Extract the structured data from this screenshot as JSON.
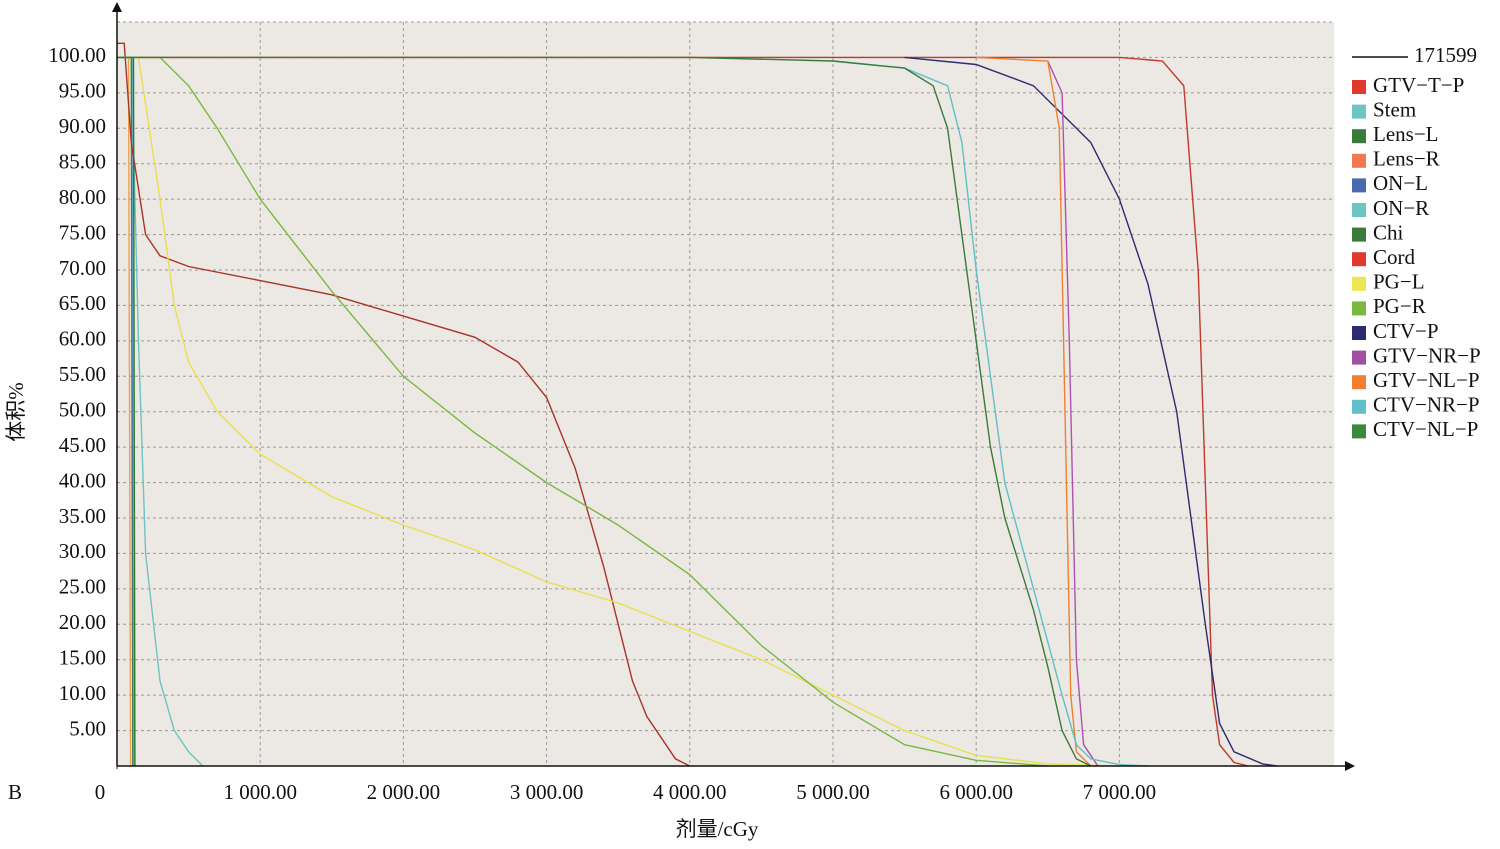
{
  "chart_data": {
    "type": "line",
    "panel_label": "B",
    "x_label": "剂量/cGy",
    "y_label": "体积%",
    "plan_label": "171599",
    "xlim": [
      0,
      8500
    ],
    "ylim": [
      0,
      105
    ],
    "xticks": [
      0,
      {
        "value": 1000,
        "label": "1 000.00"
      },
      {
        "value": 2000,
        "label": "2 000.00"
      },
      {
        "value": 3000,
        "label": "3 000.00"
      },
      {
        "value": 4000,
        "label": "4 000.00"
      },
      {
        "value": 5000,
        "label": "5 000.00"
      },
      {
        "value": 6000,
        "label": "6 000.00"
      },
      {
        "value": 7000,
        "label": "7 000.00"
      }
    ],
    "yticks": [
      {
        "value": 5,
        "label": "5.00"
      },
      {
        "value": 10,
        "label": "10.00"
      },
      {
        "value": 15,
        "label": "15.00"
      },
      {
        "value": 20,
        "label": "20.00"
      },
      {
        "value": 25,
        "label": "25.00"
      },
      {
        "value": 30,
        "label": "30.00"
      },
      {
        "value": 35,
        "label": "35.00"
      },
      {
        "value": 40,
        "label": "40.00"
      },
      {
        "value": 45,
        "label": "45.00"
      },
      {
        "value": 50,
        "label": "50.00"
      },
      {
        "value": 55,
        "label": "55.00"
      },
      {
        "value": 60,
        "label": "60.00"
      },
      {
        "value": 65,
        "label": "65.00"
      },
      {
        "value": 70,
        "label": "70.00"
      },
      {
        "value": 75,
        "label": "75.00"
      },
      {
        "value": 80,
        "label": "80.00"
      },
      {
        "value": 85,
        "label": "85.00"
      },
      {
        "value": 90,
        "label": "90.00"
      },
      {
        "value": 95,
        "label": "95.00"
      },
      {
        "value": 100,
        "label": "100.00"
      }
    ],
    "grid": true,
    "series": [
      {
        "name": "GTV−T−P",
        "color": "#e0392d",
        "line_color": "#c0392b",
        "x": [
          0,
          7000,
          7300,
          7450,
          7550,
          7600,
          7650,
          7700,
          7800,
          7900
        ],
        "values": [
          100,
          100,
          99.5,
          96,
          70,
          40,
          10,
          3,
          0.5,
          0
        ]
      },
      {
        "name": "Stem",
        "color": "#6cc4c4",
        "line_color": "#6cc4c4",
        "x": [
          0,
          100,
          150,
          200,
          300,
          400,
          500,
          600
        ],
        "values": [
          100,
          100,
          60,
          30,
          12,
          5,
          2,
          0
        ]
      },
      {
        "name": "Lens−L",
        "color": "#3a7a3a",
        "line_color": "#3a8a3a",
        "x": [
          0,
          100,
          110
        ],
        "values": [
          100,
          100,
          0
        ]
      },
      {
        "name": "Lens−R",
        "color": "#f07a50",
        "line_color": "#f0a050",
        "x": [
          0,
          80,
          95
        ],
        "values": [
          100,
          100,
          0
        ]
      },
      {
        "name": "ON−L",
        "color": "#4a6ab0",
        "line_color": "#4a6ab0",
        "x": [
          0,
          105,
          115
        ],
        "values": [
          100,
          100,
          0
        ]
      },
      {
        "name": "ON−R",
        "color": "#6cc4c4",
        "line_color": "#6cc4c4",
        "x": [
          0,
          110,
          120
        ],
        "values": [
          100,
          100,
          0
        ]
      },
      {
        "name": "Chi",
        "color": "#3a7a3a",
        "line_color": "#2e7a2e",
        "x": [
          0,
          115,
          125
        ],
        "values": [
          100,
          100,
          0
        ]
      },
      {
        "name": "Cord",
        "color": "#e0392d",
        "line_color": "#a8342a",
        "x": [
          0,
          50,
          100,
          200,
          300,
          500,
          1000,
          1500,
          2000,
          2500,
          2800,
          3000,
          3200,
          3300,
          3400,
          3500,
          3600,
          3700,
          3800,
          3900,
          4000
        ],
        "values": [
          102,
          102,
          88,
          75,
          72,
          70.5,
          68.5,
          66.5,
          63.5,
          60.5,
          57,
          52,
          42,
          35,
          28,
          20,
          12,
          7,
          4,
          1,
          0
        ]
      },
      {
        "name": "PG−L",
        "color": "#eee552",
        "line_color": "#e8e050",
        "x": [
          150,
          300,
          400,
          500,
          700,
          1000,
          1500,
          2000,
          2500,
          3000,
          3500,
          4000,
          4500,
          5000,
          5500,
          6000,
          6500,
          7000
        ],
        "values": [
          100,
          80,
          65,
          57,
          50,
          44,
          38,
          34,
          30.5,
          26,
          23,
          19,
          15,
          10,
          5,
          1.5,
          0.3,
          0
        ]
      },
      {
        "name": "PG−R",
        "color": "#7ab840",
        "line_color": "#7ab840",
        "x": [
          0,
          300,
          500,
          700,
          1000,
          1500,
          2000,
          2500,
          3000,
          3500,
          4000,
          4500,
          5000,
          5500,
          6000,
          6500
        ],
        "values": [
          100,
          100,
          96,
          90,
          80,
          67,
          55,
          47,
          40,
          34,
          27,
          17,
          9,
          3,
          0.8,
          0
        ]
      },
      {
        "name": "CTV−P",
        "color": "#2e2a70",
        "line_color": "#2e2a70",
        "x": [
          5500,
          6000,
          6400,
          6800,
          7000,
          7200,
          7400,
          7500,
          7600,
          7700,
          7800,
          8000,
          8100
        ],
        "values": [
          100,
          99,
          96,
          88,
          80,
          68,
          50,
          35,
          20,
          6,
          2,
          0.3,
          0
        ]
      },
      {
        "name": "GTV−NR−P",
        "color": "#a050a0",
        "line_color": "#b050b0",
        "x": [
          6500,
          6600,
          6650,
          6700,
          6750,
          6850
        ],
        "values": [
          99.5,
          95,
          60,
          15,
          3,
          0
        ]
      },
      {
        "name": "GTV−NL−P",
        "color": "#f08030",
        "line_color": "#f08030",
        "x": [
          6000,
          6500,
          6580,
          6620,
          6660,
          6700,
          6800
        ],
        "values": [
          100,
          99.5,
          90,
          50,
          10,
          2,
          0
        ]
      },
      {
        "name": "CTV−NR−P",
        "color": "#60c0c8",
        "line_color": "#60c0c8",
        "x": [
          5000,
          5500,
          5800,
          5900,
          6000,
          6100,
          6200,
          6400,
          6600,
          6700,
          6800,
          7000,
          7200
        ],
        "values": [
          99.5,
          98.5,
          96,
          88,
          70,
          55,
          40,
          25,
          10,
          3,
          1,
          0.2,
          0
        ]
      },
      {
        "name": "CTV−NL−P",
        "color": "#3a8a3a",
        "line_color": "#3a7a3a",
        "x": [
          0,
          4000,
          5000,
          5500,
          5700,
          5800,
          5900,
          6000,
          6100,
          6200,
          6400,
          6500,
          6600,
          6700,
          6800
        ],
        "values": [
          100,
          100,
          99.5,
          98.5,
          96,
          90,
          75,
          60,
          45,
          35,
          22,
          14,
          5,
          1,
          0
        ]
      }
    ]
  }
}
